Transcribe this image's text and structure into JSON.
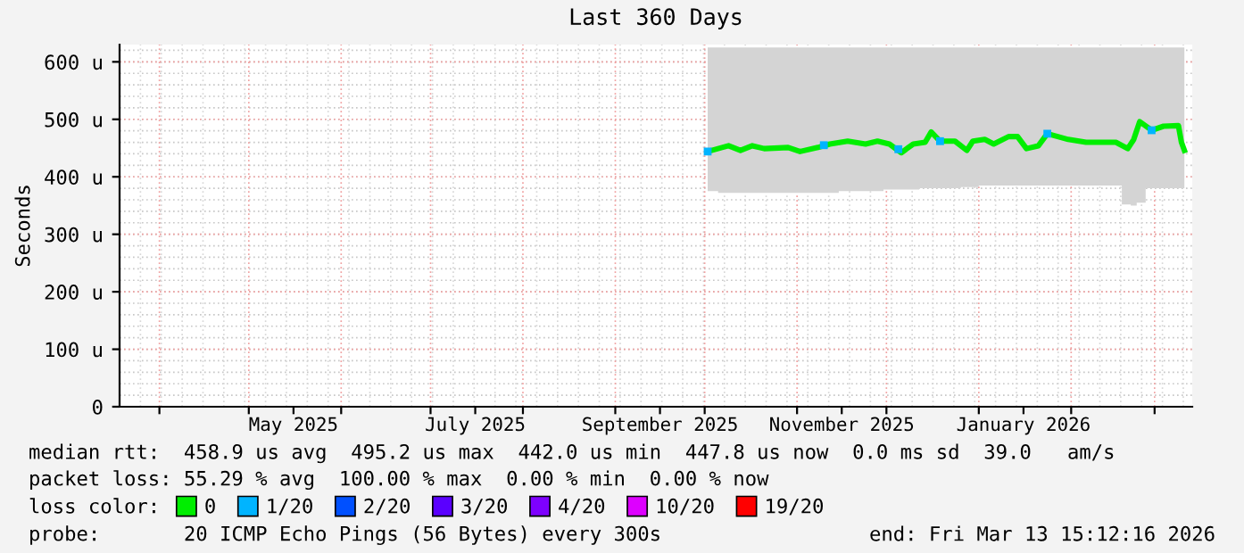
{
  "chart_data": {
    "type": "line",
    "title": "Last 360 Days",
    "ylabel": "Seconds",
    "xlim": [
      "2025-03-18T15:12",
      "2026-03-13T15:12"
    ],
    "xticks": [
      {
        "value": "2025-04-01",
        "label": null
      },
      {
        "value": "2025-05-01",
        "label": null
      },
      {
        "value": "2025-05-16",
        "label": "May 2025"
      },
      {
        "value": "2025-06-01",
        "label": null
      },
      {
        "value": "2025-07-01",
        "label": null
      },
      {
        "value": "2025-07-16",
        "label": "July 2025"
      },
      {
        "value": "2025-08-01",
        "label": null
      },
      {
        "value": "2025-09-01",
        "label": null
      },
      {
        "value": "2025-09-16",
        "label": "September 2025"
      },
      {
        "value": "2025-10-01",
        "label": null
      },
      {
        "value": "2025-11-01",
        "label": null
      },
      {
        "value": "2025-11-16",
        "label": "November 2025"
      },
      {
        "value": "2025-12-01",
        "label": null
      },
      {
        "value": "2026-01-01",
        "label": null
      },
      {
        "value": "2026-01-16",
        "label": "January 2026"
      },
      {
        "value": "2026-02-01",
        "label": null
      },
      {
        "value": "2026-03-01",
        "label": null
      }
    ],
    "ylim": [
      0,
      630
    ],
    "yticks": [
      0,
      {
        "value": 100,
        "label": "100 u"
      },
      {
        "value": 200,
        "label": "200 u"
      },
      {
        "value": 300,
        "label": "300 u"
      },
      {
        "value": 400,
        "label": "400 u"
      },
      {
        "value": 500,
        "label": "500 u"
      },
      {
        "value": 600,
        "label": "600 u"
      }
    ],
    "grid": true,
    "legend": "bottom",
    "x": [
      "2025-10-02",
      "2025-10-09",
      "2025-10-13",
      "2025-10-17",
      "2025-10-21",
      "2025-10-29",
      "2025-11-02",
      "2025-11-08",
      "2025-11-12",
      "2025-11-18",
      "2025-11-24",
      "2025-11-28",
      "2025-12-02",
      "2025-12-06",
      "2025-12-10",
      "2025-12-14",
      "2025-12-16",
      "2025-12-19",
      "2025-12-24",
      "2025-12-28",
      "2025-12-30",
      "2026-01-03",
      "2026-01-06",
      "2026-01-11",
      "2026-01-14",
      "2026-01-17",
      "2026-01-21",
      "2026-01-24",
      "2026-01-31",
      "2026-02-06",
      "2026-02-12",
      "2026-02-16",
      "2026-02-20",
      "2026-02-22",
      "2026-02-24",
      "2026-02-28",
      "2026-03-04",
      "2026-03-09",
      "2026-03-10",
      "2026-03-11"
    ],
    "series": [
      {
        "name": "0",
        "color": "#00ee00",
        "values": [
          444,
          454,
          446,
          454,
          449,
          451,
          444,
          451,
          457,
          462,
          457,
          462,
          457,
          442,
          457,
          460,
          478,
          462,
          462,
          446,
          462,
          465,
          457,
          470,
          470,
          449,
          454,
          475,
          465,
          460,
          460,
          460,
          449,
          465,
          496,
          481,
          488,
          489,
          460,
          446
        ],
        "lower": [
          375,
          372,
          372,
          372,
          372,
          372,
          372,
          372,
          372,
          375,
          375,
          375,
          378,
          378,
          378,
          380,
          380,
          380,
          380,
          382,
          382,
          385,
          385,
          385,
          385,
          385,
          385,
          385,
          385,
          385,
          385,
          385,
          352,
          350,
          355,
          380,
          380,
          380,
          380,
          380
        ],
        "upper": [
          625,
          625,
          625,
          625,
          625,
          625,
          625,
          625,
          625,
          625,
          625,
          625,
          625,
          625,
          625,
          625,
          625,
          625,
          625,
          625,
          625,
          625,
          625,
          625,
          625,
          625,
          625,
          625,
          625,
          625,
          625,
          625,
          625,
          625,
          625,
          625,
          625,
          625,
          625,
          625
        ]
      },
      {
        "name": "1/20",
        "color": "#00b4ff",
        "type": "scatter",
        "x": [
          "2025-10-02",
          "2025-11-10",
          "2025-12-05",
          "2025-12-19",
          "2026-01-24",
          "2026-02-28"
        ],
        "values": [
          444,
          455,
          448,
          462,
          475,
          481
        ]
      },
      {
        "name": "2/20",
        "color": "#0050ff",
        "type": "scatter",
        "values": [
          null,
          null,
          null,
          null,
          null,
          null,
          null,
          null,
          null,
          null,
          null,
          null,
          null,
          null,
          null,
          null,
          null,
          null,
          null,
          null,
          null,
          null,
          null,
          null,
          null,
          null,
          null,
          null,
          null,
          null,
          null,
          null,
          null,
          null,
          null,
          null,
          null,
          null,
          null,
          null
        ]
      },
      {
        "name": "3/20",
        "color": "#5a00ff",
        "type": "scatter",
        "values": [
          null,
          null,
          null,
          null,
          null,
          null,
          null,
          null,
          null,
          null,
          null,
          null,
          null,
          null,
          null,
          null,
          null,
          null,
          null,
          null,
          null,
          null,
          null,
          null,
          null,
          null,
          null,
          null,
          null,
          null,
          null,
          null,
          null,
          null,
          null,
          null,
          null,
          null,
          null,
          null
        ]
      },
      {
        "name": "4/20",
        "color": "#7e00ff",
        "type": "scatter",
        "values": [
          null,
          null,
          null,
          null,
          null,
          null,
          null,
          null,
          null,
          null,
          null,
          null,
          null,
          null,
          null,
          null,
          null,
          null,
          null,
          null,
          null,
          null,
          null,
          null,
          null,
          null,
          null,
          null,
          null,
          null,
          null,
          null,
          null,
          null,
          null,
          null,
          null,
          null,
          null,
          null
        ]
      },
      {
        "name": "10/20",
        "color": "#dd00ff",
        "type": "scatter",
        "values": [
          null,
          null,
          null,
          null,
          null,
          null,
          null,
          null,
          null,
          null,
          null,
          null,
          null,
          null,
          null,
          null,
          null,
          null,
          null,
          null,
          null,
          null,
          null,
          null,
          null,
          null,
          null,
          null,
          null,
          null,
          null,
          null,
          null,
          null,
          null,
          null,
          null,
          null,
          null,
          null
        ]
      },
      {
        "name": "19/20",
        "color": "#ff0000",
        "type": "scatter",
        "values": [
          null,
          null,
          null,
          null,
          null,
          null,
          null,
          null,
          null,
          null,
          null,
          null,
          null,
          null,
          null,
          null,
          null,
          null,
          null,
          null,
          null,
          null,
          null,
          null,
          null,
          null,
          null,
          null,
          null,
          null,
          null,
          null,
          null,
          null,
          null,
          null,
          null,
          null,
          null,
          null
        ]
      }
    ],
    "annotations": [
      "median rtt:  458.9 us avg  495.2 us max  442.0 us min  447.8 us now  0.0 ms sd  39.0   am/s",
      "packet loss: 55.29 % avg  100.00 % max  0.00 % min  0.00 % now",
      "loss color:",
      "probe:       20 ICMP Echo Pings (56 Bytes) every 300s",
      "end: Fri Mar 13 15:12:16 2026"
    ]
  }
}
